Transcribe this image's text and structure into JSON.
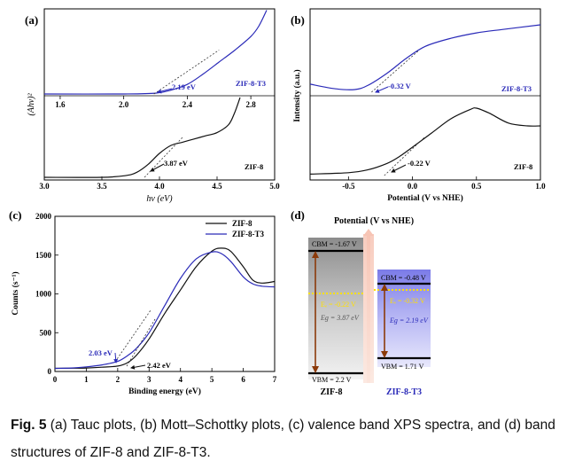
{
  "caption": {
    "label": "Fig. 5",
    "text": " (a) Tauc plots, (b) Mott–Schottky plots, (c) valence band XPS spectra, and (d) band structures of ZIF-8 and ZIF-8-T3."
  },
  "colors": {
    "zif8": "#111111",
    "zif8t3": "#2a2ab8",
    "fermi": "#ffe000",
    "arrow": "#8b3a0a",
    "potential_arrow": "#f3b8a8"
  },
  "chart_data": [
    {
      "panel": "(a)",
      "type": "line",
      "title": "",
      "ylabel": "(Ahν)²",
      "xlabel": "hν (eV)",
      "top": {
        "series_label": "ZIF-8-T3",
        "xticks": [
          "1.6",
          "2.0",
          "2.4",
          "2.8"
        ],
        "xlim": [
          1.5,
          2.95
        ],
        "x": [
          1.5,
          2.0,
          2.2,
          2.3,
          2.4,
          2.5,
          2.6,
          2.7,
          2.8,
          2.85,
          2.9
        ],
        "y": [
          0.0,
          0.0,
          0.01,
          0.05,
          0.12,
          0.25,
          0.4,
          0.55,
          0.72,
          0.85,
          1.05
        ],
        "annotation": "2.19 eV",
        "edge": 2.19
      },
      "bottom": {
        "series_label": "ZIF-8",
        "xticks": [
          "3.0",
          "3.5",
          "4.0",
          "4.5",
          "5.0"
        ],
        "xlim": [
          3.0,
          5.0
        ],
        "x": [
          3.0,
          3.5,
          3.7,
          3.8,
          3.9,
          4.0,
          4.1,
          4.2,
          4.3,
          4.4,
          4.5,
          4.6,
          4.65,
          4.7
        ],
        "y": [
          0.0,
          0.0,
          0.02,
          0.06,
          0.16,
          0.3,
          0.4,
          0.44,
          0.48,
          0.52,
          0.56,
          0.66,
          0.8,
          1.0
        ],
        "annotation": "3.87 eV",
        "edge": 3.87
      }
    },
    {
      "panel": "(b)",
      "type": "line",
      "title": "",
      "ylabel": "Intensity (a.u.)",
      "xlabel": "Potential (V vs NHE)",
      "xticks": [
        "-0.5",
        "0.0",
        "0.5",
        "1.0"
      ],
      "xlim": [
        -0.8,
        1.0
      ],
      "top": {
        "series_label": "ZIF-8-T3",
        "x": [
          -0.8,
          -0.6,
          -0.45,
          -0.35,
          -0.2,
          -0.05,
          0.1,
          0.3,
          0.5,
          0.7,
          1.0
        ],
        "y": [
          0.12,
          0.05,
          0.04,
          0.1,
          0.28,
          0.5,
          0.68,
          0.8,
          0.88,
          0.93,
          1.0
        ],
        "annotation": "-0.32 V",
        "edge": -0.32
      },
      "bottom": {
        "series_label": "ZIF-8",
        "x": [
          -0.8,
          -0.5,
          -0.35,
          -0.2,
          -0.1,
          0.0,
          0.15,
          0.3,
          0.45,
          0.5,
          0.6,
          0.75,
          0.9,
          1.0
        ],
        "y": [
          0.02,
          0.04,
          0.08,
          0.17,
          0.27,
          0.4,
          0.6,
          0.8,
          0.93,
          0.95,
          0.88,
          0.74,
          0.7,
          0.7
        ],
        "annotation": "-0.22 V",
        "edge": -0.22
      }
    },
    {
      "panel": "(c)",
      "type": "line",
      "title": "",
      "xlabel": "Binding energy (eV)",
      "ylabel": "Counts (s⁻¹)",
      "xlim": [
        0,
        7
      ],
      "ylim": [
        0,
        2000
      ],
      "xticks": [
        "0",
        "1",
        "2",
        "3",
        "4",
        "5",
        "6",
        "7"
      ],
      "yticks": [
        "0",
        "500",
        "1000",
        "1500",
        "2000"
      ],
      "legend_position": "top-right",
      "series": [
        {
          "name": "ZIF-8",
          "x": [
            0,
            0.5,
            1.0,
            1.5,
            2.0,
            2.3,
            2.6,
            3.0,
            3.5,
            4.0,
            4.5,
            5.0,
            5.3,
            5.6,
            6.0,
            6.3,
            6.6,
            7.0
          ],
          "y": [
            40,
            42,
            45,
            55,
            70,
            110,
            210,
            420,
            750,
            1050,
            1350,
            1550,
            1590,
            1550,
            1350,
            1180,
            1140,
            1160
          ]
        },
        {
          "name": "ZIF-8-T3",
          "x": [
            0,
            0.5,
            1.0,
            1.5,
            2.0,
            2.3,
            2.6,
            3.0,
            3.5,
            4.0,
            4.5,
            5.0,
            5.3,
            5.6,
            6.0,
            6.3,
            6.6,
            7.0
          ],
          "y": [
            40,
            45,
            60,
            85,
            130,
            200,
            300,
            500,
            850,
            1200,
            1450,
            1540,
            1520,
            1420,
            1220,
            1130,
            1100,
            1090
          ]
        }
      ],
      "annotations": [
        "2.03 eV",
        "2.42 eV"
      ]
    },
    {
      "panel": "(d)",
      "type": "diagram",
      "title": "Potential (V vs NHE)",
      "zif8": {
        "label": "ZIF-8",
        "cbm_label": "CBM = -1.67 V",
        "vbm_label": "VBM = 2.2 V",
        "ef_label": "Eₑ = -0.22 V",
        "eg_label": "Eg = 3.87 eV",
        "cbm": -1.67,
        "vbm": 2.2,
        "ef": -0.22,
        "eg": 3.87
      },
      "zif8t3": {
        "label": "ZIF-8-T3",
        "cbm_label": "CBM = -0.48 V",
        "vbm_label": "VBM = 1.71 V",
        "ef_label": "Eₑ = -0.32 V",
        "eg_label": "Eg = 2.19 eV",
        "cbm": -0.48,
        "vbm": 1.71,
        "ef": -0.32,
        "eg": 2.19
      }
    }
  ]
}
